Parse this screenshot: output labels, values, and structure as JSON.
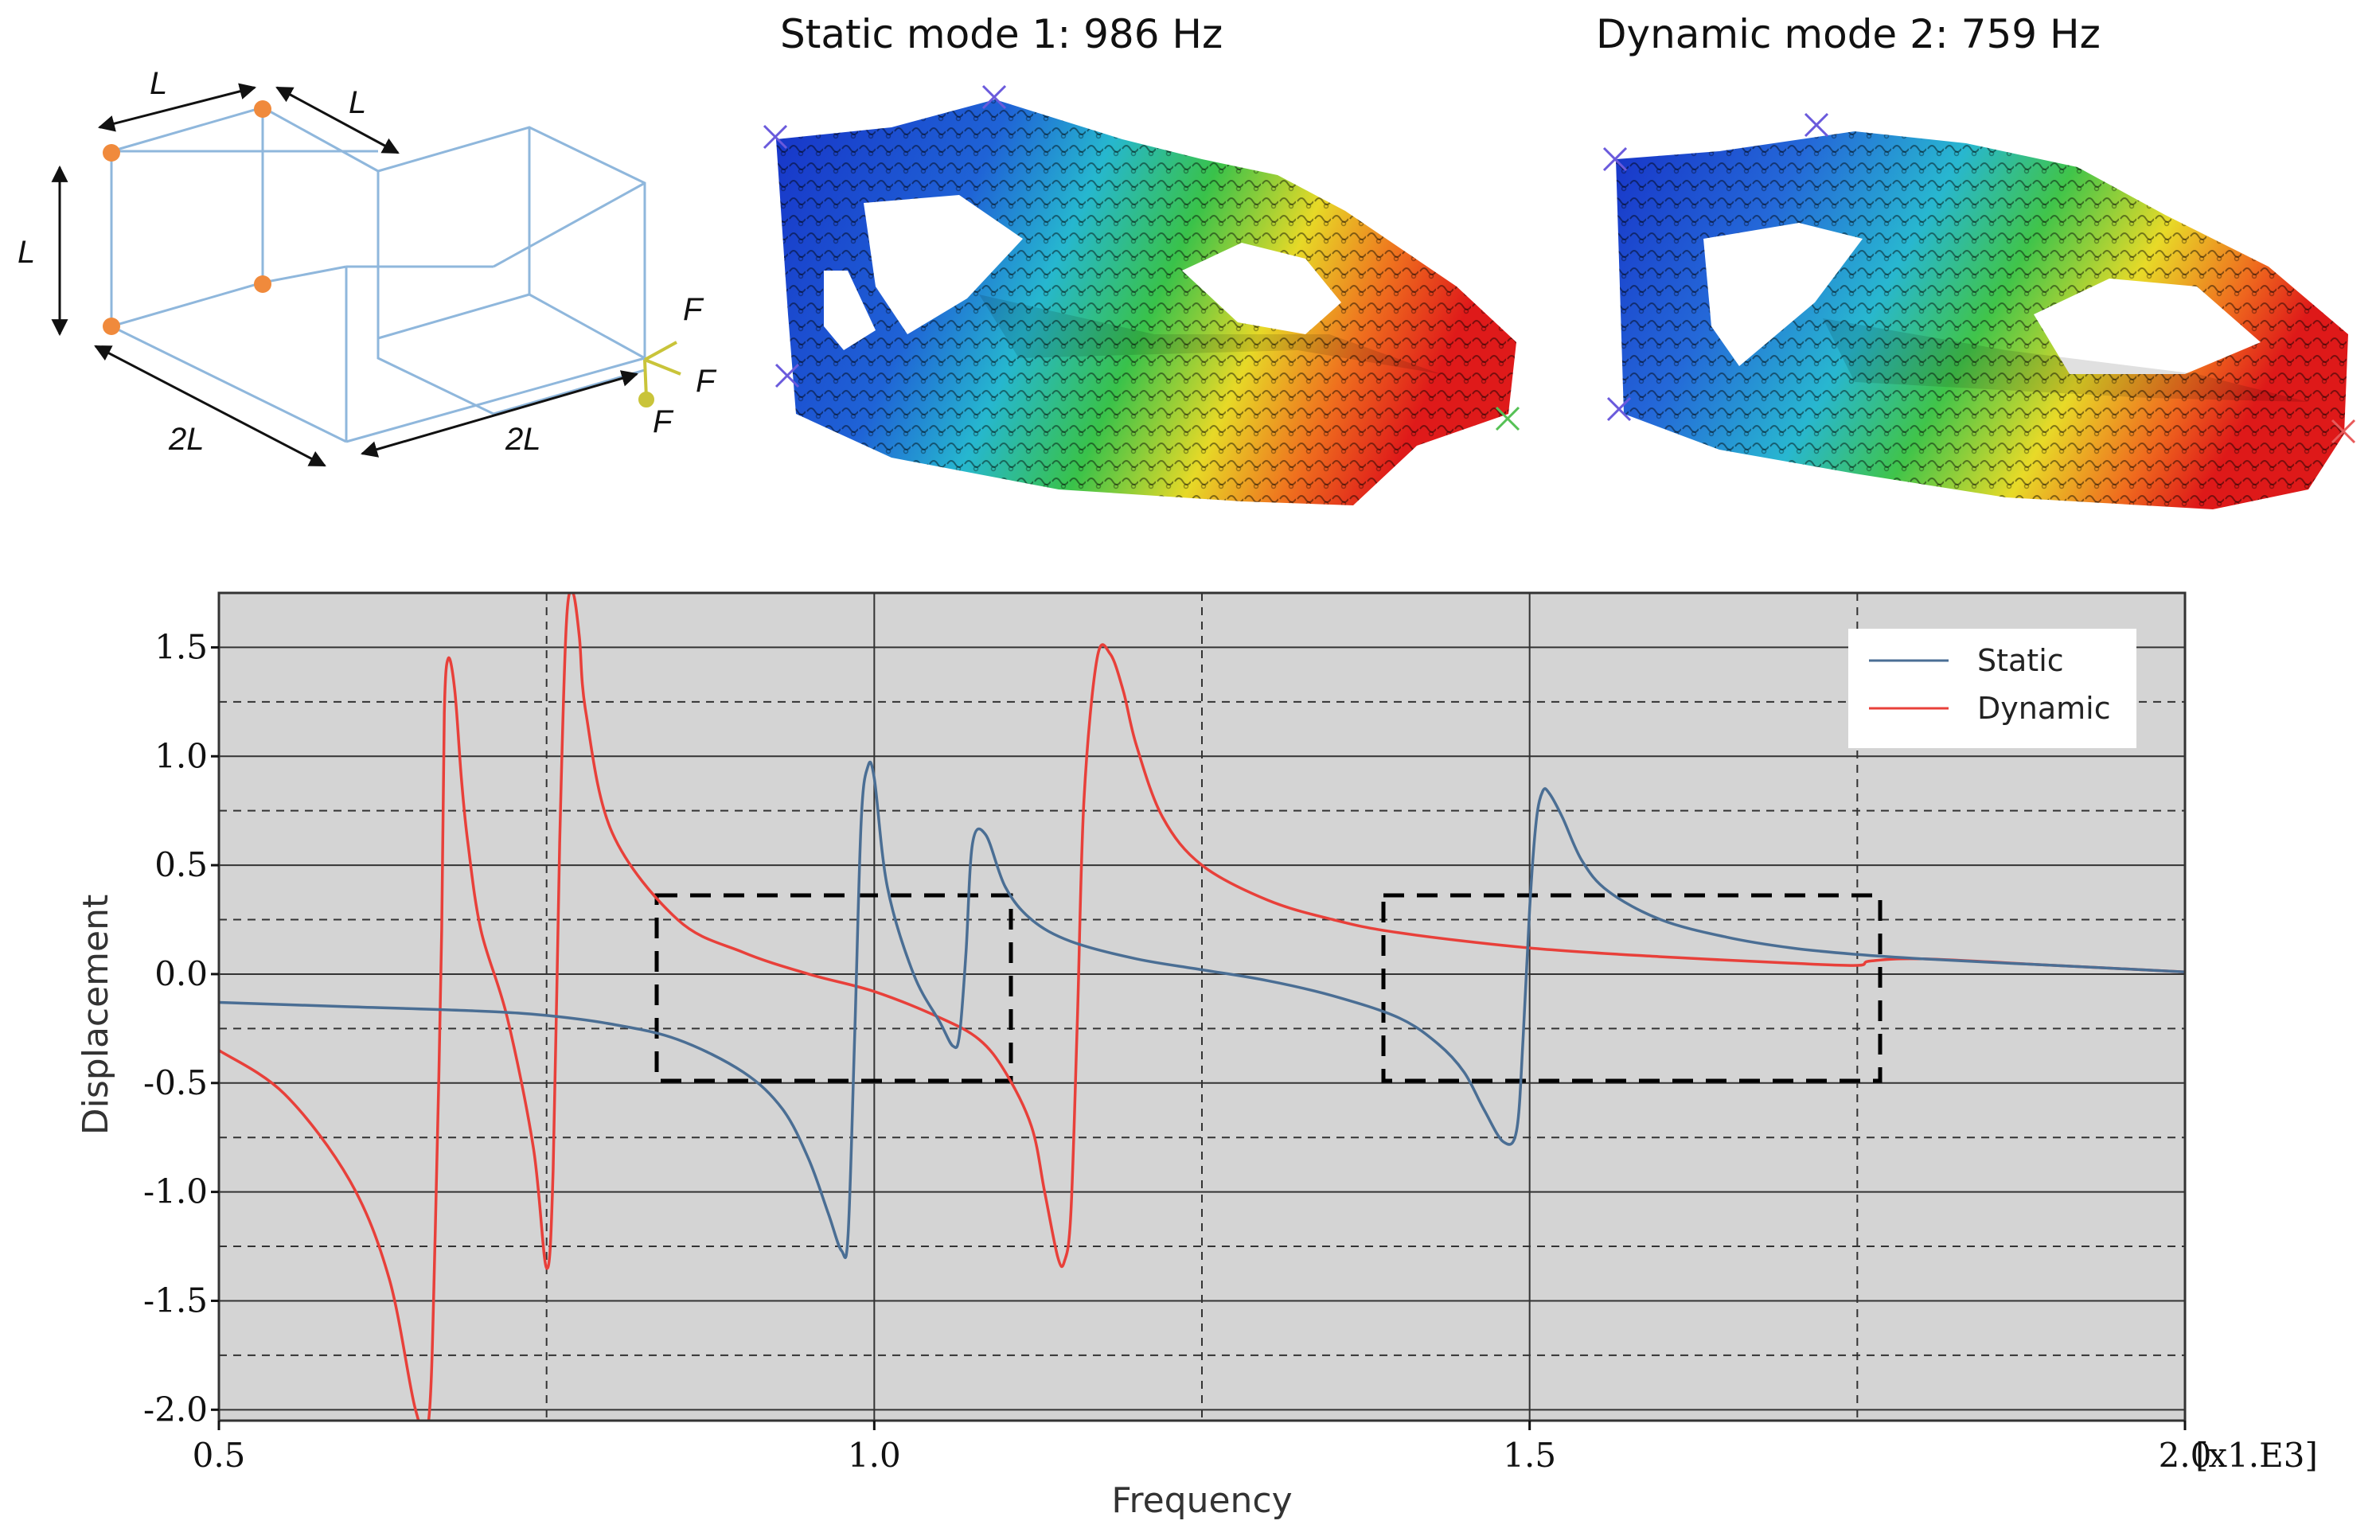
{
  "titles": {
    "static_mode": "Static mode 1: 986 Hz",
    "dynamic_mode": "Dynamic mode 2: 759 Hz"
  },
  "diagram": {
    "dim_top_left": "L",
    "dim_top_right": "L",
    "dim_vertical": "L",
    "dim_bottom_left": "2L",
    "dim_bottom_right": "2L",
    "force_1": "F",
    "force_2": "F",
    "force_3": "F"
  },
  "colors": {
    "static": "#4a6e94",
    "dynamic": "#e8403a",
    "plot_bg": "#d4d4d4",
    "box_edge": "#8fb7dc"
  },
  "chart_data": {
    "type": "line",
    "title": "",
    "xlabel": "Frequency",
    "ylabel": "Displacement",
    "x_unit_label": "[x1.E3]",
    "xlim": [
      0.5,
      2.0
    ],
    "ylim": [
      -2.05,
      1.75
    ],
    "xticks": [
      0.5,
      1.0,
      1.5,
      2.0
    ],
    "xtick_labels": [
      "0.5",
      "1.0",
      "1.5",
      "2.0"
    ],
    "yticks": [
      1.5,
      1.0,
      0.5,
      0.0,
      -0.5,
      -1.0,
      -1.5,
      -2.0
    ],
    "ytick_labels": [
      "1.5",
      "1.0",
      "0.5",
      "0.0",
      "-0.5",
      "-1.0",
      "-1.5",
      "-2.0"
    ],
    "grid": true,
    "legend": "top-right",
    "series": [
      {
        "name": "Static",
        "x": [
          0.5,
          0.6,
          0.7,
          0.75,
          0.8,
          0.85,
          0.9,
          0.93,
          0.95,
          0.965,
          0.975,
          0.98,
          0.985,
          0.99,
          0.995,
          1.0,
          1.01,
          1.03,
          1.05,
          1.06,
          1.065,
          1.07,
          1.075,
          1.085,
          1.1,
          1.12,
          1.15,
          1.2,
          1.25,
          1.3,
          1.35,
          1.4,
          1.43,
          1.45,
          1.465,
          1.48,
          1.49,
          1.495,
          1.5,
          1.505,
          1.51,
          1.515,
          1.525,
          1.54,
          1.56,
          1.6,
          1.65,
          1.7,
          1.75,
          1.8,
          1.9,
          2.0
        ],
        "y": [
          -0.13,
          -0.15,
          -0.17,
          -0.19,
          -0.23,
          -0.3,
          -0.45,
          -0.62,
          -0.85,
          -1.1,
          -1.27,
          -1.2,
          -0.3,
          0.7,
          0.95,
          0.9,
          0.4,
          0.0,
          -0.22,
          -0.33,
          -0.28,
          0.1,
          0.6,
          0.64,
          0.4,
          0.25,
          0.15,
          0.07,
          0.02,
          -0.03,
          -0.1,
          -0.2,
          -0.32,
          -0.45,
          -0.62,
          -0.77,
          -0.72,
          -0.3,
          0.3,
          0.7,
          0.84,
          0.83,
          0.72,
          0.52,
          0.38,
          0.25,
          0.17,
          0.12,
          0.09,
          0.07,
          0.04,
          0.01
        ]
      },
      {
        "name": "Dynamic",
        "x": [
          0.5,
          0.55,
          0.6,
          0.63,
          0.65,
          0.66,
          0.665,
          0.67,
          0.672,
          0.675,
          0.68,
          0.685,
          0.69,
          0.7,
          0.72,
          0.74,
          0.75,
          0.755,
          0.76,
          0.765,
          0.77,
          0.775,
          0.78,
          0.8,
          0.85,
          0.9,
          0.95,
          1.0,
          1.05,
          1.08,
          1.1,
          1.12,
          1.13,
          1.14,
          1.145,
          1.15,
          1.155,
          1.16,
          1.17,
          1.18,
          1.19,
          1.2,
          1.22,
          1.25,
          1.3,
          1.35,
          1.4,
          1.5,
          1.6,
          1.7,
          1.75,
          1.76,
          1.8,
          1.9,
          2.0
        ],
        "y": [
          -0.35,
          -0.55,
          -0.95,
          -1.4,
          -2.0,
          -2.05,
          -1.2,
          0.2,
          1.2,
          1.45,
          1.3,
          0.9,
          0.6,
          0.2,
          -0.2,
          -0.8,
          -1.35,
          -0.9,
          0.6,
          1.6,
          1.75,
          1.55,
          1.2,
          0.65,
          0.25,
          0.1,
          0.0,
          -0.08,
          -0.2,
          -0.3,
          -0.45,
          -0.7,
          -1.0,
          -1.3,
          -1.32,
          -1.1,
          -0.2,
          0.8,
          1.45,
          1.47,
          1.3,
          1.05,
          0.72,
          0.5,
          0.34,
          0.25,
          0.19,
          0.12,
          0.08,
          0.05,
          0.04,
          0.06,
          0.07,
          0.04,
          0.01
        ]
      }
    ]
  }
}
